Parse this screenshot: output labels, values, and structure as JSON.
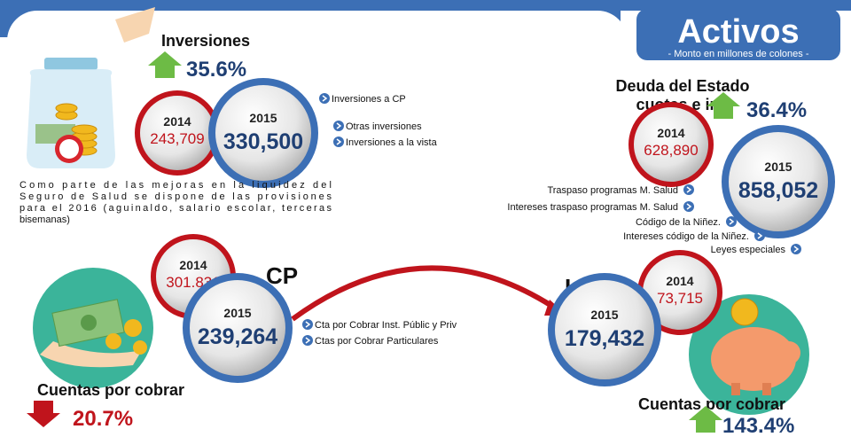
{
  "header": {
    "title": "Activos",
    "subtitle": "- Monto en millones de colones -"
  },
  "inversiones": {
    "title": "Inversiones",
    "change": "35.6%",
    "year_2014": "2014",
    "value_2014": "243,709",
    "year_2015": "2015",
    "value_2015": "330,500",
    "items": [
      "Inversiones a CP",
      "Otras inversiones",
      "Inversiones a la vista"
    ],
    "note": [
      "Como parte de las mejoras en la liquidez del",
      "Seguro de Salud se dispone de las provisiones",
      "para el 2016 (aguinaldo, salario escolar, terceras",
      "bisemanas)"
    ]
  },
  "deuda": {
    "title": [
      "Deuda del Estado",
      "cuotas e int."
    ],
    "change": "36.4%",
    "year_2014": "2014",
    "value_2014": "628,890",
    "year_2015": "2015",
    "value_2015": "858,052",
    "items": [
      "Traspaso programas M. Salud",
      "Intereses traspaso programas M. Salud",
      "Código de la Niñez.",
      "Intereses código de la Niñez.",
      "Leyes especiales"
    ]
  },
  "cp": {
    "label": "CP",
    "title": "Cuentas por cobrar",
    "change": "20.7%",
    "year_2014": "2014",
    "value_2014": "301.831",
    "year_2015": "2015",
    "value_2015": "239,264",
    "items": [
      "Cta por Cobrar Inst. Públic y Priv",
      "Ctas por Cobrar Particulares"
    ]
  },
  "lp": {
    "label": "LP",
    "title": "Cuentas por cobrar",
    "change": "143.4%",
    "year_2014": "2014",
    "value_2014": "73,715",
    "year_2015": "2015",
    "value_2015": "179,432"
  }
}
